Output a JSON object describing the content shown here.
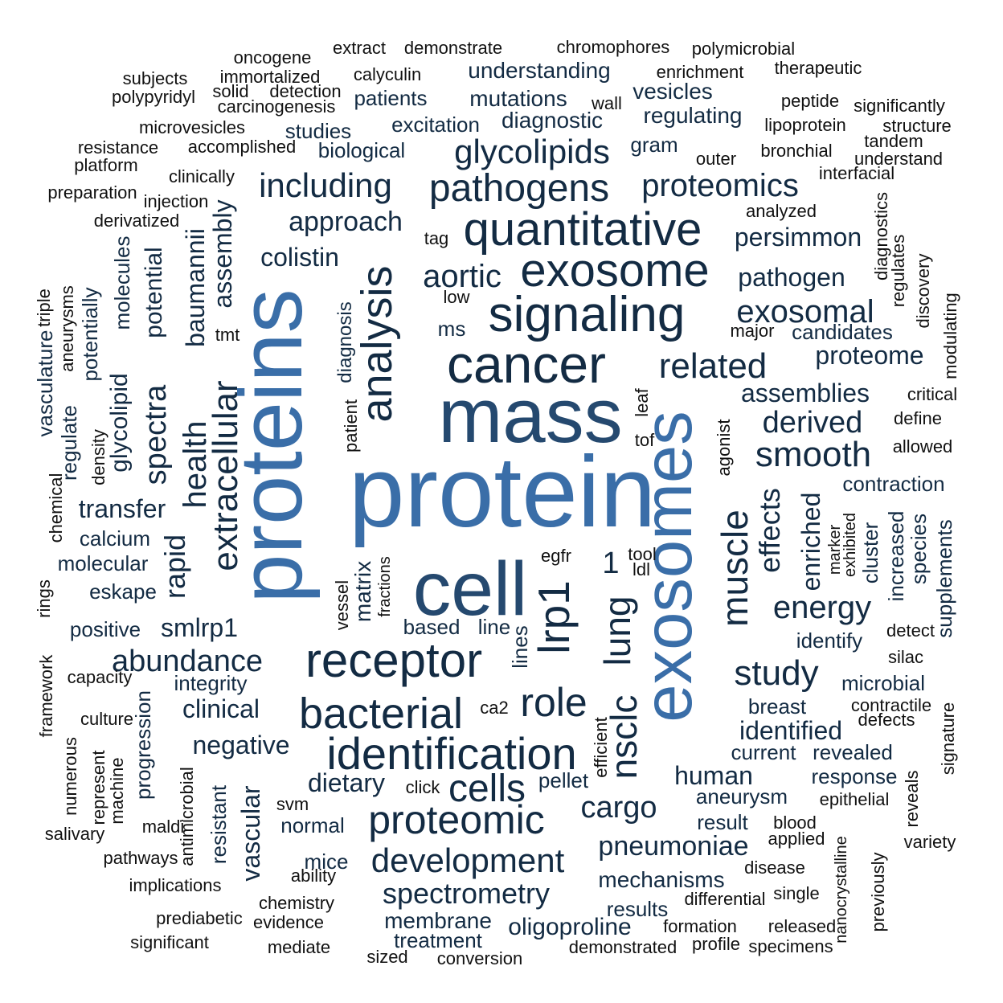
{
  "palette": {
    "dark": "#132b43",
    "mid": "#25496f",
    "light": "#3a6ea8",
    "text": "#111111",
    "background": "#ffffff"
  },
  "words": [
    {
      "text": "protein",
      "tone": "light"
    },
    {
      "text": "proteins",
      "tone": "light"
    },
    {
      "text": "exosomes",
      "tone": "light"
    },
    {
      "text": "mass",
      "tone": "mid"
    },
    {
      "text": "cell",
      "tone": "mid"
    },
    {
      "text": "cancer",
      "tone": "dark"
    },
    {
      "text": "signaling",
      "tone": "dark"
    },
    {
      "text": "exosome",
      "tone": "dark"
    },
    {
      "text": "quantitative",
      "tone": "dark"
    },
    {
      "text": "analysis",
      "tone": "dark"
    },
    {
      "text": "lrp1",
      "tone": "dark"
    },
    {
      "text": "receptor",
      "tone": "dark"
    },
    {
      "text": "identification",
      "tone": "dark"
    },
    {
      "text": "bacterial",
      "tone": "dark"
    },
    {
      "text": "pathogens",
      "tone": "dark"
    },
    {
      "text": "glycolipids",
      "tone": "dark"
    },
    {
      "text": "extracellular",
      "tone": "dark"
    },
    {
      "text": "muscle",
      "tone": "dark"
    },
    {
      "text": "nsclc",
      "tone": "dark"
    },
    {
      "text": "lung",
      "tone": "dark"
    },
    {
      "text": "proteomic",
      "tone": "dark"
    },
    {
      "text": "cells",
      "tone": "dark"
    },
    {
      "text": "role",
      "tone": "dark"
    },
    {
      "text": "including",
      "tone": "dark"
    },
    {
      "text": "proteomics",
      "tone": "dark"
    },
    {
      "text": "related",
      "tone": "dark"
    },
    {
      "text": "smooth",
      "tone": "dark"
    },
    {
      "text": "study",
      "tone": "dark"
    },
    {
      "text": "development",
      "tone": "dark"
    },
    {
      "text": "abundance",
      "tone": "dark"
    },
    {
      "text": "aortic",
      "tone": "dark"
    },
    {
      "text": "exosomal",
      "tone": "dark"
    },
    {
      "text": "derived",
      "tone": "dark"
    },
    {
      "text": "spectrometry",
      "tone": "dark"
    },
    {
      "text": "cargo",
      "tone": "dark"
    },
    {
      "text": "energy",
      "tone": "dark"
    },
    {
      "text": "pneumoniae",
      "tone": "dark"
    },
    {
      "text": "approach",
      "tone": "dark"
    },
    {
      "text": "spectra",
      "tone": "dark"
    },
    {
      "text": "health",
      "tone": "dark"
    },
    {
      "text": "effects",
      "tone": "dark"
    },
    {
      "text": "persimmon",
      "tone": "dark"
    },
    {
      "text": "pathogen",
      "tone": "dark"
    },
    {
      "text": "proteome",
      "tone": "dark"
    },
    {
      "text": "assemblies",
      "tone": "dark"
    },
    {
      "text": "colistin",
      "tone": "dark"
    },
    {
      "text": "baumannii",
      "tone": "dark"
    },
    {
      "text": "assembly",
      "tone": "dark"
    },
    {
      "text": "rapid",
      "tone": "dark"
    },
    {
      "text": "transfer",
      "tone": "dark"
    },
    {
      "text": "negative",
      "tone": "dark"
    },
    {
      "text": "identified",
      "tone": "dark"
    },
    {
      "text": "human",
      "tone": "dark"
    },
    {
      "text": "dietary",
      "tone": "dark"
    },
    {
      "text": "vascular",
      "tone": "dark"
    },
    {
      "text": "smlrp1",
      "tone": "dark"
    },
    {
      "text": "enriched",
      "tone": "dark"
    },
    {
      "text": "oligoproline",
      "tone": "dark"
    },
    {
      "text": "clinical",
      "tone": "dark"
    },
    {
      "text": "glycolipid",
      "tone": "dark"
    },
    {
      "text": "potential",
      "tone": "dark"
    },
    {
      "text": "matrix",
      "tone": "dark"
    },
    {
      "text": "membrane",
      "tone": "dark"
    },
    {
      "text": "mechanisms",
      "tone": "dark"
    },
    {
      "text": "understanding",
      "tone": "dark"
    },
    {
      "text": "mutations",
      "tone": "dark"
    },
    {
      "text": "regulating",
      "tone": "dark"
    },
    {
      "text": "vesicles",
      "tone": "dark"
    },
    {
      "text": "diagnostic",
      "tone": "dark"
    },
    {
      "text": "excitation",
      "tone": "dark"
    },
    {
      "text": "patients",
      "tone": "dark"
    },
    {
      "text": "biological",
      "tone": "dark"
    },
    {
      "text": "studies",
      "tone": "dark"
    },
    {
      "text": "gram",
      "tone": "dark"
    },
    {
      "text": "aneurysm",
      "tone": "dark"
    },
    {
      "text": "result",
      "tone": "dark"
    },
    {
      "text": "results",
      "tone": "dark"
    },
    {
      "text": "treatment",
      "tone": "dark"
    },
    {
      "text": "normal",
      "tone": "dark"
    },
    {
      "text": "mice",
      "tone": "dark"
    },
    {
      "text": "increased",
      "tone": "dark"
    },
    {
      "text": "species",
      "tone": "dark"
    },
    {
      "text": "supplements",
      "tone": "dark"
    },
    {
      "text": "cluster",
      "tone": "dark"
    },
    {
      "text": "contraction",
      "tone": "dark"
    },
    {
      "text": "microbial",
      "tone": "dark"
    },
    {
      "text": "identify",
      "tone": "dark"
    },
    {
      "text": "breast",
      "tone": "dark"
    },
    {
      "text": "current",
      "tone": "dark"
    },
    {
      "text": "revealed",
      "tone": "dark"
    },
    {
      "text": "response",
      "tone": "dark"
    },
    {
      "text": "candidates",
      "tone": "dark"
    },
    {
      "text": "calcium",
      "tone": "dark"
    },
    {
      "text": "molecular",
      "tone": "dark"
    },
    {
      "text": "eskape",
      "tone": "dark"
    },
    {
      "text": "positive",
      "tone": "dark"
    },
    {
      "text": "integrity",
      "tone": "dark"
    },
    {
      "text": "progression",
      "tone": "dark"
    },
    {
      "text": "resistant",
      "tone": "dark"
    },
    {
      "text": "molecules",
      "tone": "dark"
    },
    {
      "text": "potentially",
      "tone": "dark"
    },
    {
      "text": "regulate",
      "tone": "dark"
    },
    {
      "text": "vasculature",
      "tone": "dark"
    },
    {
      "text": "diagnosis",
      "tone": "dark"
    },
    {
      "text": "based",
      "tone": "dark"
    },
    {
      "text": "line",
      "tone": "dark"
    },
    {
      "text": "lines",
      "tone": "dark"
    },
    {
      "text": "pellet",
      "tone": "dark"
    },
    {
      "text": "ms",
      "tone": "dark"
    },
    {
      "text": "1",
      "tone": "dark"
    },
    {
      "text": "extract",
      "tone": "text"
    },
    {
      "text": "demonstrate",
      "tone": "text"
    },
    {
      "text": "chromophores",
      "tone": "text"
    },
    {
      "text": "polymicrobial",
      "tone": "text"
    },
    {
      "text": "oncogene",
      "tone": "text"
    },
    {
      "text": "subjects",
      "tone": "text"
    },
    {
      "text": "immortalized",
      "tone": "text"
    },
    {
      "text": "calyculin",
      "tone": "text"
    },
    {
      "text": "enrichment",
      "tone": "text"
    },
    {
      "text": "therapeutic",
      "tone": "text"
    },
    {
      "text": "solid",
      "tone": "text"
    },
    {
      "text": "detection",
      "tone": "text"
    },
    {
      "text": "polypyridyl",
      "tone": "text"
    },
    {
      "text": "carcinogenesis",
      "tone": "text"
    },
    {
      "text": "wall",
      "tone": "text"
    },
    {
      "text": "peptide",
      "tone": "text"
    },
    {
      "text": "significantly",
      "tone": "text"
    },
    {
      "text": "microvesicles",
      "tone": "text"
    },
    {
      "text": "lipoprotein",
      "tone": "text"
    },
    {
      "text": "structure",
      "tone": "text"
    },
    {
      "text": "resistance",
      "tone": "text"
    },
    {
      "text": "accomplished",
      "tone": "text"
    },
    {
      "text": "tandem",
      "tone": "text"
    },
    {
      "text": "bronchial",
      "tone": "text"
    },
    {
      "text": "outer",
      "tone": "text"
    },
    {
      "text": "understand",
      "tone": "text"
    },
    {
      "text": "platform",
      "tone": "text"
    },
    {
      "text": "clinically",
      "tone": "text"
    },
    {
      "text": "interfacial",
      "tone": "text"
    },
    {
      "text": "preparation",
      "tone": "text"
    },
    {
      "text": "injection",
      "tone": "text"
    },
    {
      "text": "analyzed",
      "tone": "text"
    },
    {
      "text": "derivatized",
      "tone": "text"
    },
    {
      "text": "tag",
      "tone": "text"
    },
    {
      "text": "diagnostics",
      "tone": "text"
    },
    {
      "text": "regulates",
      "tone": "text"
    },
    {
      "text": "discovery",
      "tone": "text"
    },
    {
      "text": "low",
      "tone": "text"
    },
    {
      "text": "major",
      "tone": "text"
    },
    {
      "text": "tmt",
      "tone": "text"
    },
    {
      "text": "triple",
      "tone": "text"
    },
    {
      "text": "aneurysms",
      "tone": "text"
    },
    {
      "text": "modulating",
      "tone": "text"
    },
    {
      "text": "critical",
      "tone": "text"
    },
    {
      "text": "leaf",
      "tone": "text"
    },
    {
      "text": "define",
      "tone": "text"
    },
    {
      "text": "patient",
      "tone": "text"
    },
    {
      "text": "agonist",
      "tone": "text"
    },
    {
      "text": "tof",
      "tone": "text"
    },
    {
      "text": "allowed",
      "tone": "text"
    },
    {
      "text": "density",
      "tone": "text"
    },
    {
      "text": "chemical",
      "tone": "text"
    },
    {
      "text": "marker",
      "tone": "text"
    },
    {
      "text": "exhibited",
      "tone": "text"
    },
    {
      "text": "egfr",
      "tone": "text"
    },
    {
      "text": "tool",
      "tone": "text"
    },
    {
      "text": "ldl",
      "tone": "text"
    },
    {
      "text": "fractions",
      "tone": "text"
    },
    {
      "text": "vessel",
      "tone": "text"
    },
    {
      "text": "rings",
      "tone": "text"
    },
    {
      "text": "detect",
      "tone": "text"
    },
    {
      "text": "silac",
      "tone": "text"
    },
    {
      "text": "framework",
      "tone": "text"
    },
    {
      "text": "capacity",
      "tone": "text"
    },
    {
      "text": "ca2",
      "tone": "text"
    },
    {
      "text": "contractile",
      "tone": "text"
    },
    {
      "text": "defects",
      "tone": "text"
    },
    {
      "text": "culture",
      "tone": "text"
    },
    {
      "text": "numerous",
      "tone": "text"
    },
    {
      "text": "represent",
      "tone": "text"
    },
    {
      "text": "machine",
      "tone": "text"
    },
    {
      "text": "efficient",
      "tone": "text"
    },
    {
      "text": "signature",
      "tone": "text"
    },
    {
      "text": "click",
      "tone": "text"
    },
    {
      "text": "epithelial",
      "tone": "text"
    },
    {
      "text": "reveals",
      "tone": "text"
    },
    {
      "text": "svm",
      "tone": "text"
    },
    {
      "text": "maldi",
      "tone": "text"
    },
    {
      "text": "antimicrobial",
      "tone": "text"
    },
    {
      "text": "salivary",
      "tone": "text"
    },
    {
      "text": "blood",
      "tone": "text"
    },
    {
      "text": "applied",
      "tone": "text"
    },
    {
      "text": "variety",
      "tone": "text"
    },
    {
      "text": "nanocrystalline",
      "tone": "text"
    },
    {
      "text": "pathways",
      "tone": "text"
    },
    {
      "text": "ability",
      "tone": "text"
    },
    {
      "text": "disease",
      "tone": "text"
    },
    {
      "text": "previously",
      "tone": "text"
    },
    {
      "text": "implications",
      "tone": "text"
    },
    {
      "text": "chemistry",
      "tone": "text"
    },
    {
      "text": "differential",
      "tone": "text"
    },
    {
      "text": "single",
      "tone": "text"
    },
    {
      "text": "prediabetic",
      "tone": "text"
    },
    {
      "text": "evidence",
      "tone": "text"
    },
    {
      "text": "formation",
      "tone": "text"
    },
    {
      "text": "released",
      "tone": "text"
    },
    {
      "text": "significant",
      "tone": "text"
    },
    {
      "text": "mediate",
      "tone": "text"
    },
    {
      "text": "demonstrated",
      "tone": "text"
    },
    {
      "text": "profile",
      "tone": "text"
    },
    {
      "text": "specimens",
      "tone": "text"
    },
    {
      "text": "sized",
      "tone": "text"
    },
    {
      "text": "conversion",
      "tone": "text"
    }
  ]
}
